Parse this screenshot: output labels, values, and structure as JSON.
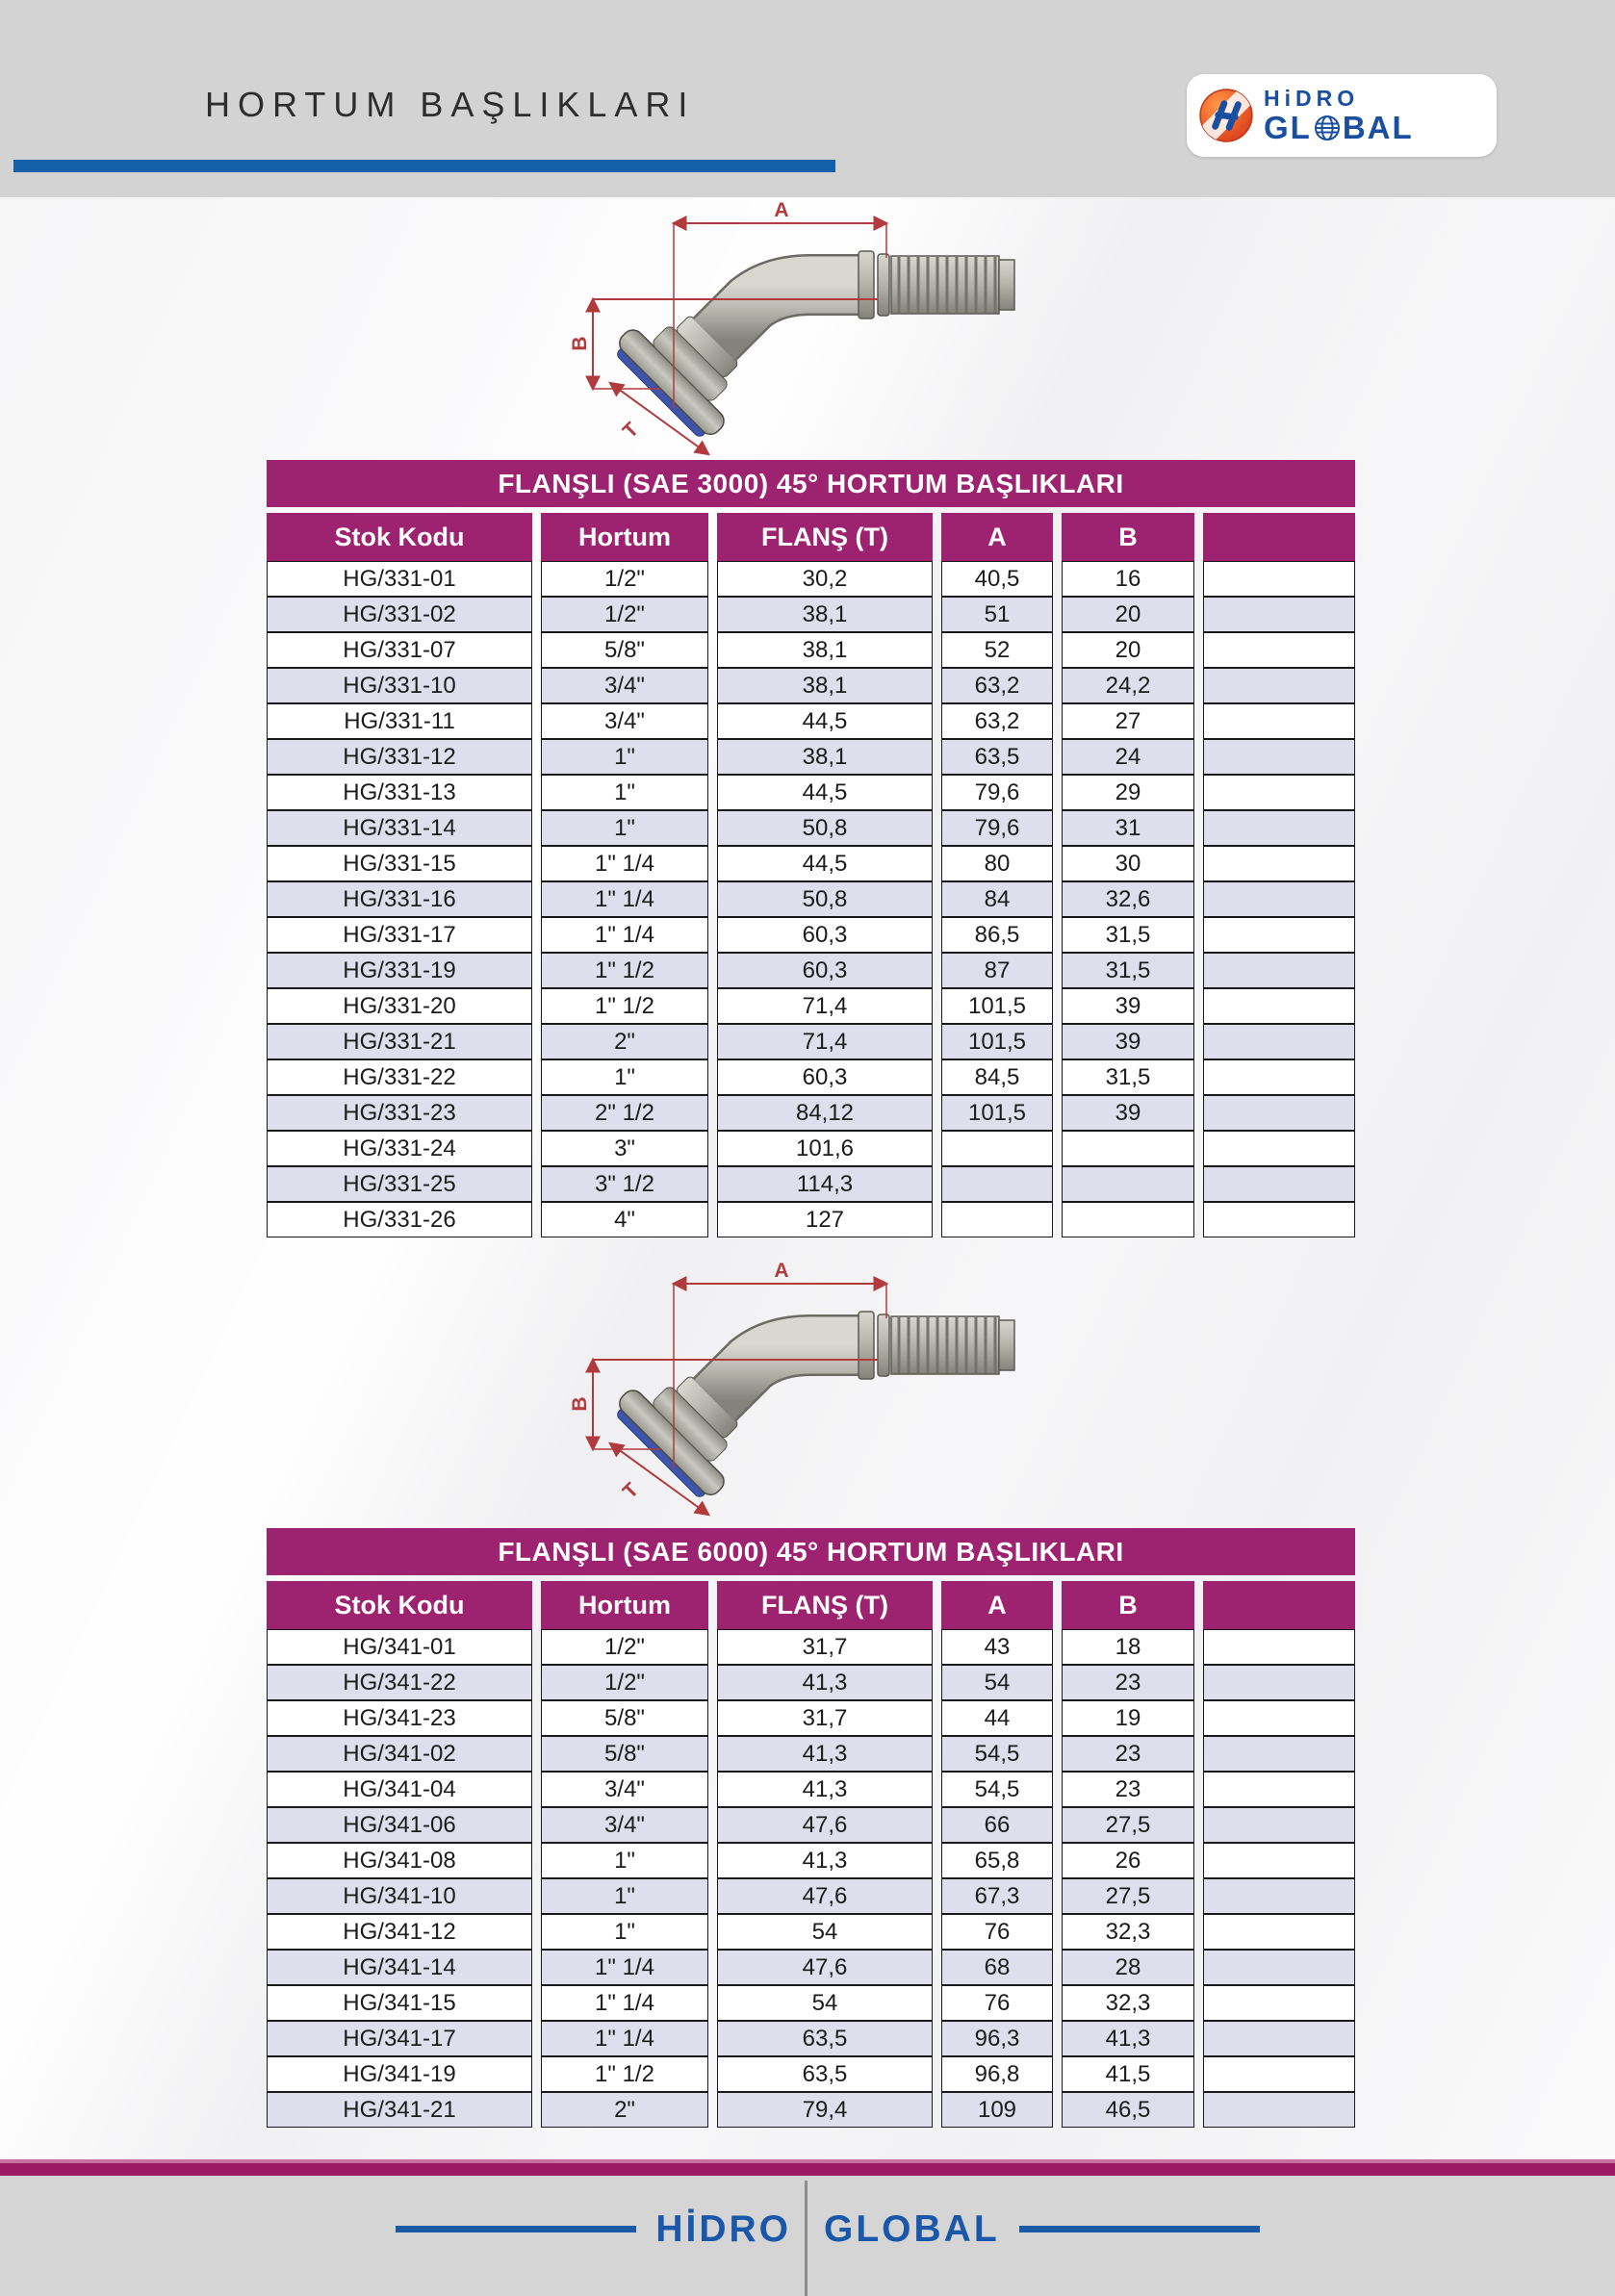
{
  "page": {
    "title": "HORTUM BAŞLIKLARI"
  },
  "logo": {
    "line1": "HiDRO",
    "line2_pre": "GL",
    "line2_post": "BAL"
  },
  "diagram": {
    "label_a": "A",
    "label_b": "B",
    "label_t": "T"
  },
  "tables": [
    {
      "title": "FLANŞLI (SAE 3000) 45° HORTUM BAŞLIKLARI",
      "columns": [
        "Stok Kodu",
        "Hortum",
        "FLANŞ (T)",
        "A",
        "B"
      ],
      "rows": [
        [
          "HG/331-01",
          "1/2\"",
          "30,2",
          "40,5",
          "16"
        ],
        [
          "HG/331-02",
          "1/2\"",
          "38,1",
          "51",
          "20"
        ],
        [
          "HG/331-07",
          "5/8\"",
          "38,1",
          "52",
          "20"
        ],
        [
          "HG/331-10",
          "3/4\"",
          "38,1",
          "63,2",
          "24,2"
        ],
        [
          "HG/331-11",
          "3/4\"",
          "44,5",
          "63,2",
          "27"
        ],
        [
          "HG/331-12",
          "1\"",
          "38,1",
          "63,5",
          "24"
        ],
        [
          "HG/331-13",
          "1\"",
          "44,5",
          "79,6",
          "29"
        ],
        [
          "HG/331-14",
          "1\"",
          "50,8",
          "79,6",
          "31"
        ],
        [
          "HG/331-15",
          "1\" 1/4",
          "44,5",
          "80",
          "30"
        ],
        [
          "HG/331-16",
          "1\" 1/4",
          "50,8",
          "84",
          "32,6"
        ],
        [
          "HG/331-17",
          "1\" 1/4",
          "60,3",
          "86,5",
          "31,5"
        ],
        [
          "HG/331-19",
          "1\" 1/2",
          "60,3",
          "87",
          "31,5"
        ],
        [
          "HG/331-20",
          "1\" 1/2",
          "71,4",
          "101,5",
          "39"
        ],
        [
          "HG/331-21",
          "2\"",
          "71,4",
          "101,5",
          "39"
        ],
        [
          "HG/331-22",
          "1\"",
          "60,3",
          "84,5",
          "31,5"
        ],
        [
          "HG/331-23",
          "2\" 1/2",
          "84,12",
          "101,5",
          "39"
        ],
        [
          "HG/331-24",
          "3\"",
          "101,6",
          "",
          ""
        ],
        [
          "HG/331-25",
          "3\" 1/2",
          "114,3",
          "",
          ""
        ],
        [
          "HG/331-26",
          "4\"",
          "127",
          "",
          ""
        ]
      ]
    },
    {
      "title": "FLANŞLI (SAE 6000) 45° HORTUM BAŞLIKLARI",
      "columns": [
        "Stok Kodu",
        "Hortum",
        "FLANŞ (T)",
        "A",
        "B"
      ],
      "rows": [
        [
          "HG/341-01",
          "1/2\"",
          "31,7",
          "43",
          "18"
        ],
        [
          "HG/341-22",
          "1/2\"",
          "41,3",
          "54",
          "23"
        ],
        [
          "HG/341-23",
          "5/8\"",
          "31,7",
          "44",
          "19"
        ],
        [
          "HG/341-02",
          "5/8\"",
          "41,3",
          "54,5",
          "23"
        ],
        [
          "HG/341-04",
          "3/4\"",
          "41,3",
          "54,5",
          "23"
        ],
        [
          "HG/341-06",
          "3/4\"",
          "47,6",
          "66",
          "27,5"
        ],
        [
          "HG/341-08",
          "1\"",
          "41,3",
          "65,8",
          "26"
        ],
        [
          "HG/341-10",
          "1\"",
          "47,6",
          "67,3",
          "27,5"
        ],
        [
          "HG/341-12",
          "1\"",
          "54",
          "76",
          "32,3"
        ],
        [
          "HG/341-14",
          "1\" 1/4",
          "47,6",
          "68",
          "28"
        ],
        [
          "HG/341-15",
          "1\" 1/4",
          "54",
          "76",
          "32,3"
        ],
        [
          "HG/341-17",
          "1\" 1/4",
          "63,5",
          "96,3",
          "41,3"
        ],
        [
          "HG/341-19",
          "1\" 1/2",
          "63,5",
          "96,8",
          "41,5"
        ],
        [
          "HG/341-21",
          "2\"",
          "79,4",
          "109",
          "46,5"
        ]
      ]
    }
  ],
  "footer": {
    "brand_left": "HİDRO",
    "brand_right": "GLOBAL"
  },
  "colors": {
    "magenta": "#9d2270",
    "footer_bar": "#9c1a63",
    "blue": "#1a56a6",
    "row_alt": "#dedeed",
    "dim_red": "#b13a3c"
  }
}
